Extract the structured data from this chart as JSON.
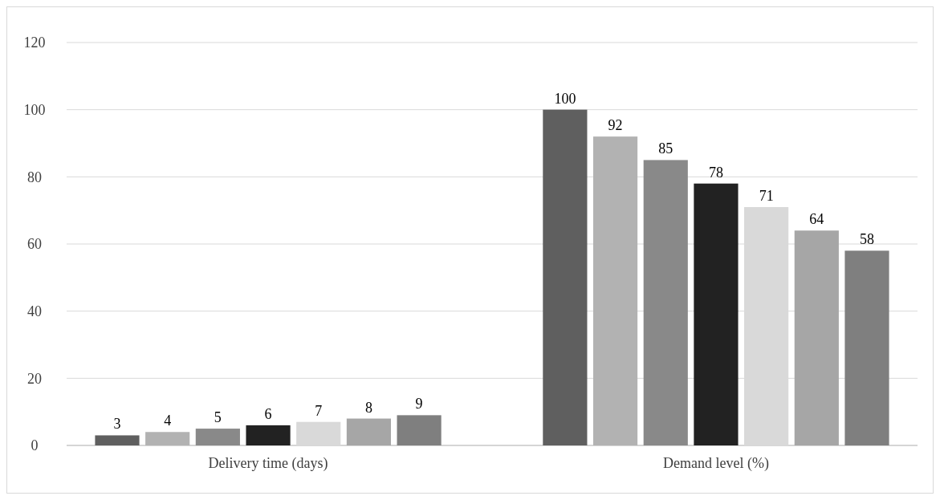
{
  "chart_data": {
    "type": "bar",
    "categories": [
      "Delivery time (days)",
      "Demand level (%)"
    ],
    "series": [
      {
        "color": "#5f5f5f",
        "values": [
          3,
          100
        ]
      },
      {
        "color": "#b2b2b2",
        "values": [
          4,
          92
        ]
      },
      {
        "color": "#898989",
        "values": [
          5,
          85
        ]
      },
      {
        "color": "#222222",
        "values": [
          6,
          78
        ]
      },
      {
        "color": "#d9d9d9",
        "values": [
          7,
          71
        ]
      },
      {
        "color": "#a6a6a6",
        "values": [
          8,
          64
        ]
      },
      {
        "color": "#7f7f7f",
        "values": [
          9,
          58
        ]
      }
    ],
    "ylim": [
      0,
      120
    ],
    "yticks": [
      0,
      20,
      40,
      60,
      80,
      100,
      120
    ],
    "grid": "y",
    "data_labels": true
  }
}
